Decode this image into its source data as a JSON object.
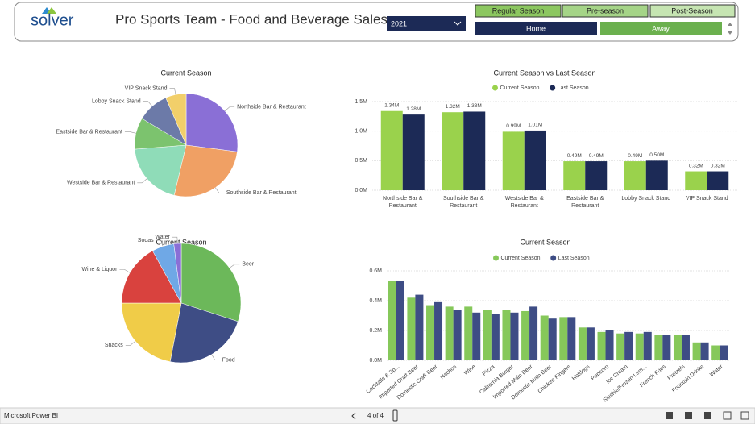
{
  "header": {
    "logo": "solver",
    "title": "Pro Sports Team - Food and Beverage Sales"
  },
  "controls": {
    "year": "2021",
    "season_buttons": [
      "Regular Season",
      "Pre-season",
      "Post-Season"
    ],
    "location_buttons": [
      "Home",
      "Away"
    ]
  },
  "chart_data": [
    {
      "type": "pie",
      "title": "Current Season",
      "categories": [
        "Northside Bar & Restaurant",
        "Southside Bar & Restaurant",
        "Westside Bar & Restaurant",
        "Eastside Bar & Restaurant",
        "Lobby Snack Stand",
        "VIP Snack Stand"
      ],
      "values": [
        1.34,
        1.32,
        0.99,
        0.49,
        0.49,
        0.32
      ],
      "colors": [
        "#8a6fd6",
        "#f0a064",
        "#8fdcb8",
        "#7cc36e",
        "#6c7aa8",
        "#f2cf6a"
      ]
    },
    {
      "type": "bar",
      "title": "Current Season vs Last Season",
      "categories": [
        "Northside Bar & Restaurant",
        "Southside Bar & Restaurant",
        "Westside Bar & Restaurant",
        "Eastside Bar & Restaurant",
        "Lobby Snack Stand",
        "VIP Snack Stand"
      ],
      "series": [
        {
          "name": "Current Season",
          "color": "#9ad24c",
          "values": [
            1.34,
            1.32,
            0.99,
            0.49,
            0.49,
            0.32
          ],
          "value_labels": [
            "1.34M",
            "1.32M",
            "0.99M",
            "0.49M",
            "0.49M",
            "0.32M"
          ]
        },
        {
          "name": "Last Season",
          "color": "#1c2a56",
          "values": [
            1.28,
            1.33,
            1.01,
            0.49,
            0.5,
            0.32
          ],
          "value_labels": [
            "1.28M",
            "1.33M",
            "1.01M",
            "0.49M",
            "0.50M",
            "0.32M"
          ]
        }
      ],
      "ylim": [
        0,
        1.5
      ],
      "yticks": [
        {
          "value": 0,
          "label": "0.0M"
        },
        {
          "value": 0.5,
          "label": "0.5M"
        },
        {
          "value": 1.0,
          "label": "1.0M"
        },
        {
          "value": 1.5,
          "label": "1.5M"
        }
      ],
      "grid": true
    },
    {
      "type": "pie",
      "title": "Current Season",
      "categories": [
        "Beer",
        "Food",
        "Snacks",
        "Wine & Liquor",
        "Sodas",
        "Water"
      ],
      "values": [
        30,
        23,
        22,
        17,
        6,
        2
      ],
      "colors": [
        "#6cb85a",
        "#3e4d85",
        "#f0cc48",
        "#d9423e",
        "#6fa8e6",
        "#8a6fd6"
      ]
    },
    {
      "type": "bar",
      "title": "Current Season",
      "categories": [
        "Cocktails & Sp...",
        "Imported Craft Beer",
        "Domestic Craft Beer",
        "Nachos",
        "Wine",
        "Pizza",
        "California Burger",
        "Imported Main Beer",
        "Domestic Main Beer",
        "Chicken Fingers",
        "Hotdogs",
        "Popcorn",
        "Ice Cream",
        "Slushie/Frozen Lem...",
        "French Fries",
        "Pretzels",
        "Fountain Drinks",
        "Water"
      ],
      "series": [
        {
          "name": "Current Season",
          "color": "#86c85a",
          "values": [
            0.53,
            0.42,
            0.37,
            0.36,
            0.36,
            0.34,
            0.34,
            0.33,
            0.3,
            0.29,
            0.22,
            0.19,
            0.18,
            0.18,
            0.17,
            0.17,
            0.12,
            0.1
          ]
        },
        {
          "name": "Last Season",
          "color": "#3e4d85",
          "values": [
            0.535,
            0.44,
            0.39,
            0.34,
            0.32,
            0.31,
            0.32,
            0.36,
            0.28,
            0.29,
            0.22,
            0.2,
            0.19,
            0.19,
            0.17,
            0.17,
            0.12,
            0.1
          ]
        }
      ],
      "ylim": [
        0,
        0.6
      ],
      "yticks": [
        {
          "value": 0,
          "label": "0.0M"
        },
        {
          "value": 0.2,
          "label": "0.2M"
        },
        {
          "value": 0.4,
          "label": "0.4M"
        },
        {
          "value": 0.6,
          "label": "0.6M"
        }
      ],
      "grid": true
    }
  ],
  "footer": {
    "app": "Microsoft Power BI",
    "page": "4 of 4"
  }
}
